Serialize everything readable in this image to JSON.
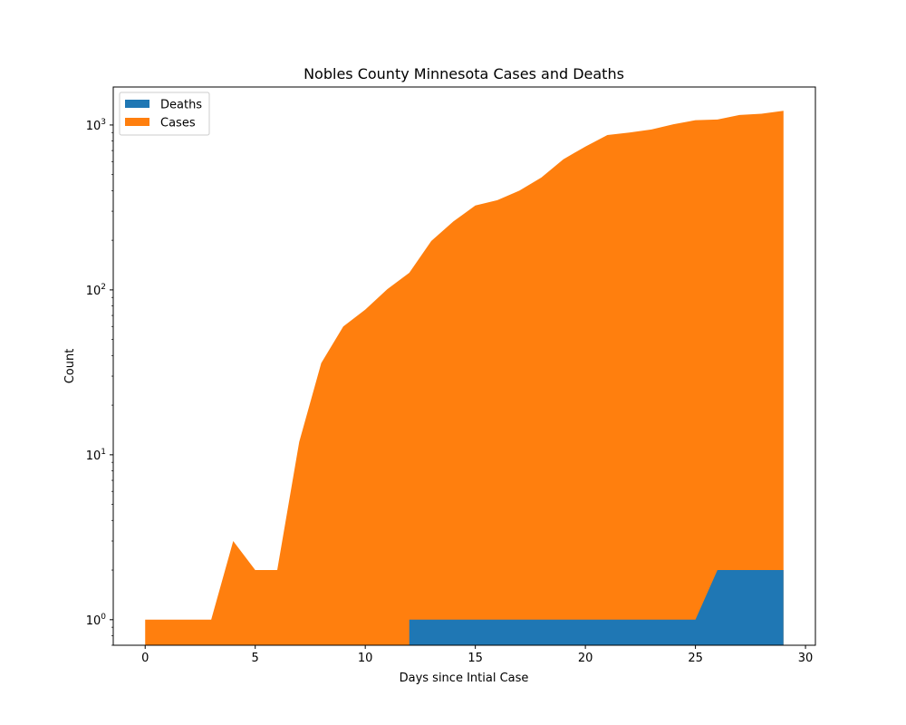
{
  "chart_data": {
    "type": "area",
    "title": "Nobles County Minnesota Cases and Deaths",
    "xlabel": "Days since Intial Case",
    "ylabel": "Count",
    "yscale": "log",
    "xlim": [
      -1.45,
      30.45
    ],
    "ylim": [
      0.7,
      1700
    ],
    "x_ticks": [
      0,
      5,
      10,
      15,
      20,
      25,
      30
    ],
    "y_ticks": [
      {
        "value": 1,
        "base": "10",
        "exp": "0"
      },
      {
        "value": 10,
        "base": "10",
        "exp": "1"
      },
      {
        "value": 100,
        "base": "10",
        "exp": "2"
      },
      {
        "value": 1000,
        "base": "10",
        "exp": "3"
      }
    ],
    "grid": false,
    "legend_position": "top-left",
    "series": [
      {
        "name": "Deaths",
        "color": "#1f77b4",
        "points": [
          [
            12,
            1
          ],
          [
            13,
            1
          ],
          [
            14,
            1
          ],
          [
            15,
            1
          ],
          [
            16,
            1
          ],
          [
            17,
            1
          ],
          [
            18,
            1
          ],
          [
            19,
            1
          ],
          [
            20,
            1
          ],
          [
            21,
            1
          ],
          [
            22,
            1
          ],
          [
            23,
            1
          ],
          [
            24,
            1
          ],
          [
            25,
            1
          ],
          [
            26,
            2
          ],
          [
            27,
            2
          ],
          [
            28,
            2
          ],
          [
            29,
            2
          ]
        ]
      },
      {
        "name": "Cases",
        "color": "#ff7f0e",
        "points": [
          [
            0,
            1
          ],
          [
            1,
            1
          ],
          [
            2,
            1
          ],
          [
            3,
            1
          ],
          [
            4,
            3
          ],
          [
            5,
            2
          ],
          [
            6,
            2
          ],
          [
            7,
            12
          ],
          [
            8,
            36
          ],
          [
            9,
            60
          ],
          [
            10,
            76
          ],
          [
            11,
            101
          ],
          [
            12,
            127
          ],
          [
            13,
            198
          ],
          [
            14,
            260
          ],
          [
            15,
            325
          ],
          [
            16,
            350
          ],
          [
            17,
            400
          ],
          [
            18,
            480
          ],
          [
            19,
            620
          ],
          [
            20,
            740
          ],
          [
            21,
            870
          ],
          [
            22,
            900
          ],
          [
            23,
            940
          ],
          [
            24,
            1010
          ],
          [
            25,
            1070
          ],
          [
            26,
            1080
          ],
          [
            27,
            1150
          ],
          [
            28,
            1170
          ],
          [
            29,
            1220
          ]
        ]
      }
    ]
  }
}
